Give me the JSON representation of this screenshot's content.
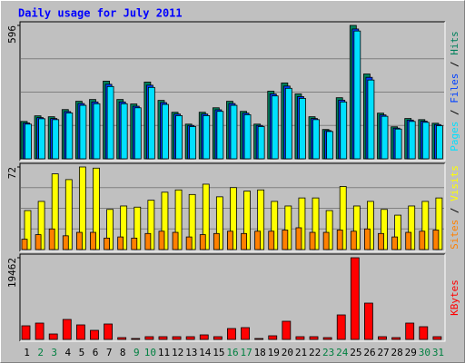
{
  "chart_data": [
    {
      "type": "bar",
      "title": "Daily usage for July 2011",
      "legend_separator": "/",
      "series": [
        {
          "name": "Hits",
          "color": "#00805c",
          "values": [
            167,
            192,
            188,
            220,
            257,
            265,
            347,
            265,
            245,
            343,
            261,
            208,
            155,
            208,
            228,
            257,
            212,
            155,
            302,
            339,
            290,
            188,
            131,
            273,
            596,
            379,
            204,
            143,
            180,
            175,
            159
          ]
        },
        {
          "name": "Files",
          "color": "#0040ff",
          "values": [
            160,
            184,
            180,
            211,
            247,
            254,
            333,
            254,
            235,
            329,
            251,
            200,
            149,
            200,
            219,
            247,
            204,
            149,
            290,
            325,
            278,
            180,
            126,
            262,
            580,
            364,
            196,
            137,
            173,
            168,
            153
          ]
        },
        {
          "name": "Pages",
          "color": "#00e0ff",
          "values": [
            155,
            179,
            175,
            205,
            239,
            246,
            323,
            246,
            228,
            319,
            243,
            193,
            144,
            193,
            212,
            239,
            197,
            144,
            281,
            315,
            270,
            175,
            122,
            254,
            571,
            352,
            190,
            133,
            167,
            163,
            148
          ]
        }
      ],
      "ylim": [
        0,
        596
      ],
      "yticks": [
        596
      ],
      "grid": true
    },
    {
      "type": "bar",
      "series": [
        {
          "name": "Visits",
          "color": "#ffff00",
          "values": [
            34,
            42,
            66,
            61,
            72,
            71,
            35,
            38,
            37,
            43,
            50,
            52,
            48,
            57,
            46,
            54,
            51,
            52,
            42,
            38,
            45,
            45,
            34,
            55,
            38,
            42,
            35,
            30,
            38,
            42,
            45
          ]
        },
        {
          "name": "Sites",
          "color": "#ff8000",
          "values": [
            9,
            13,
            18,
            12,
            15,
            15,
            10,
            11,
            10,
            14,
            16,
            15,
            11,
            13,
            14,
            16,
            14,
            16,
            16,
            17,
            19,
            15,
            15,
            17,
            16,
            18,
            14,
            11,
            15,
            16,
            17
          ]
        }
      ],
      "ylim": [
        0,
        72
      ],
      "yticks": [
        72
      ],
      "grid": true
    },
    {
      "type": "bar",
      "categories": [
        "1",
        "2",
        "3",
        "4",
        "5",
        "6",
        "7",
        "8",
        "9",
        "10",
        "11",
        "12",
        "13",
        "14",
        "15",
        "16",
        "17",
        "18",
        "19",
        "20",
        "21",
        "22",
        "23",
        "24",
        "25",
        "26",
        "27",
        "28",
        "29",
        "30",
        "31"
      ],
      "category_colors": [
        "#000000",
        "#008040",
        "#008040",
        "#000000",
        "#000000",
        "#000000",
        "#000000",
        "#000000",
        "#008040",
        "#008040",
        "#000000",
        "#000000",
        "#000000",
        "#000000",
        "#000000",
        "#008040",
        "#008040",
        "#000000",
        "#000000",
        "#000000",
        "#000000",
        "#000000",
        "#008040",
        "#008040",
        "#000000",
        "#000000",
        "#000000",
        "#000000",
        "#000000",
        "#008040",
        "#008040"
      ],
      "series": [
        {
          "name": "KBytes",
          "color": "#ff0000",
          "values": [
            3243,
            3892,
            1297,
            4757,
            3460,
            2162,
            3676,
            432,
            216,
            649,
            649,
            649,
            649,
            1081,
            649,
            2595,
            2811,
            216,
            865,
            4325,
            649,
            649,
            432,
            5838,
            19462,
            8649,
            649,
            432,
            3892,
            3027,
            649
          ]
        }
      ],
      "ylim": [
        0,
        19462
      ],
      "yticks": [
        19462
      ],
      "grid": false
    }
  ]
}
